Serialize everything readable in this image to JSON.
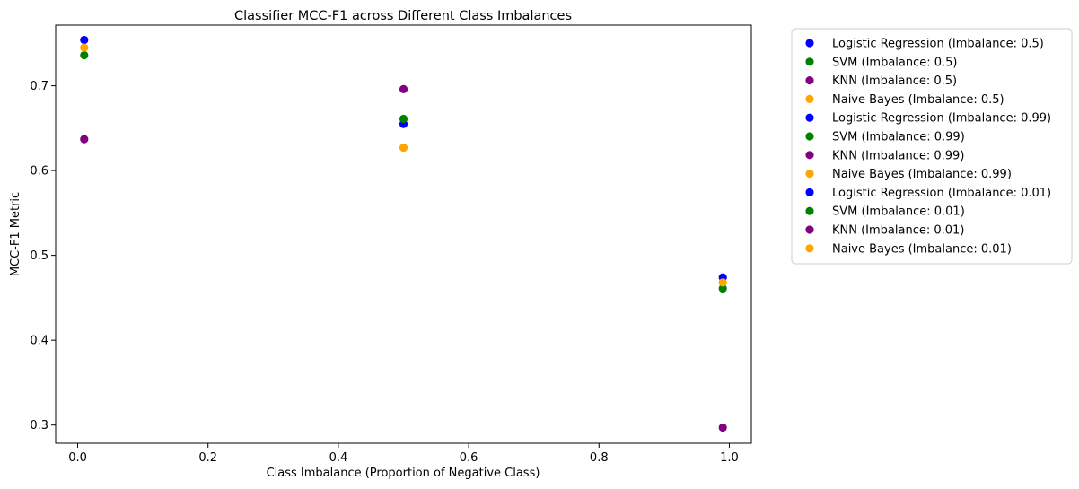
{
  "chart_data": {
    "type": "scatter",
    "title": "Classifier MCC-F1 across Different Class Imbalances",
    "xlabel": "Class Imbalance (Proportion of Negative Class)",
    "ylabel": "MCC-F1 Metric",
    "xlim": [
      -0.0338,
      1.0338
    ],
    "ylim": [
      0.2785,
      0.7715
    ],
    "xticks": [
      0.0,
      0.2,
      0.4,
      0.6,
      0.8,
      1.0
    ],
    "xtick_labels": [
      "0.0",
      "0.2",
      "0.4",
      "0.6",
      "0.8",
      "1.0"
    ],
    "yticks": [
      0.3,
      0.4,
      0.5,
      0.6,
      0.7
    ],
    "ytick_labels": [
      "0.3",
      "0.4",
      "0.5",
      "0.6",
      "0.7"
    ],
    "grid": false,
    "legend_position": "outside-right",
    "series": [
      {
        "name": "Logistic Regression (Imbalance: 0.5)",
        "color": "#0000ff",
        "x": [
          0.5
        ],
        "y": [
          0.655
        ]
      },
      {
        "name": "SVM (Imbalance: 0.5)",
        "color": "#008000",
        "x": [
          0.5
        ],
        "y": [
          0.661
        ]
      },
      {
        "name": "KNN (Imbalance: 0.5)",
        "color": "#800080",
        "x": [
          0.5
        ],
        "y": [
          0.696
        ]
      },
      {
        "name": "Naive Bayes (Imbalance: 0.5)",
        "color": "#ffa500",
        "x": [
          0.5
        ],
        "y": [
          0.627
        ]
      },
      {
        "name": "Logistic Regression (Imbalance: 0.99)",
        "color": "#0000ff",
        "x": [
          0.99
        ],
        "y": [
          0.474
        ]
      },
      {
        "name": "SVM (Imbalance: 0.99)",
        "color": "#008000",
        "x": [
          0.99
        ],
        "y": [
          0.461
        ]
      },
      {
        "name": "KNN (Imbalance: 0.99)",
        "color": "#800080",
        "x": [
          0.99
        ],
        "y": [
          0.297
        ]
      },
      {
        "name": "Naive Bayes (Imbalance: 0.99)",
        "color": "#ffa500",
        "x": [
          0.99
        ],
        "y": [
          0.468
        ]
      },
      {
        "name": "Logistic Regression (Imbalance: 0.01)",
        "color": "#0000ff",
        "x": [
          0.01
        ],
        "y": [
          0.754
        ]
      },
      {
        "name": "SVM (Imbalance: 0.01)",
        "color": "#008000",
        "x": [
          0.01
        ],
        "y": [
          0.736
        ]
      },
      {
        "name": "KNN (Imbalance: 0.01)",
        "color": "#800080",
        "x": [
          0.01
        ],
        "y": [
          0.637
        ]
      },
      {
        "name": "Naive Bayes (Imbalance: 0.01)",
        "color": "#ffa500",
        "x": [
          0.01
        ],
        "y": [
          0.745
        ]
      }
    ]
  }
}
